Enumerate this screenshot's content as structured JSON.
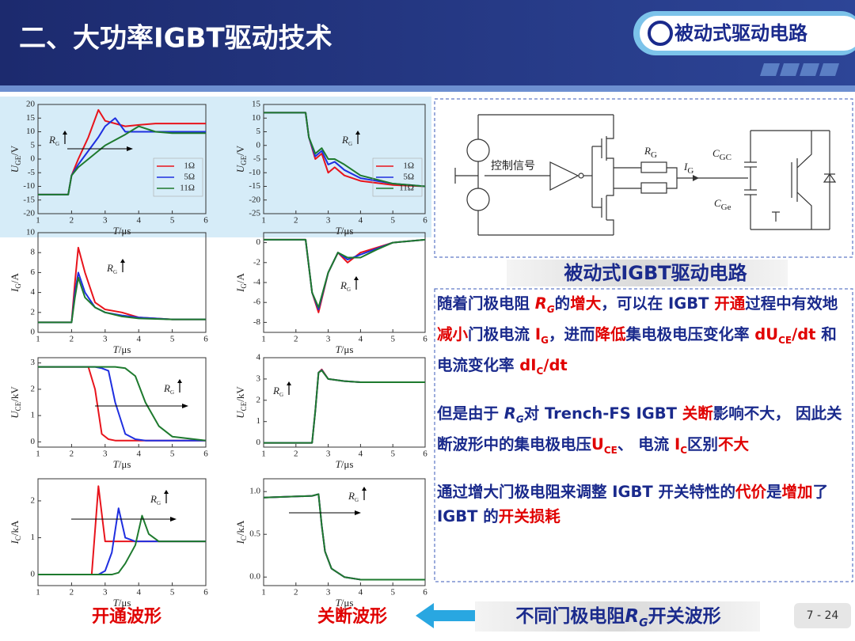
{
  "header": {
    "title": "二、大功率IGBT驱动技术",
    "badge": "被动式驱动电路"
  },
  "chart_data": [
    {
      "type": "line",
      "xlim": [
        1,
        6
      ],
      "ylim": [
        -20,
        20
      ],
      "xticks": [
        1,
        2,
        3,
        4,
        5,
        6
      ],
      "yticks": [
        -20,
        -15,
        -10,
        -5,
        0,
        5,
        10,
        15,
        20
      ],
      "xlabel": {
        "symbol": "T",
        "unit": "/μs"
      },
      "ylabel": {
        "symbol": "U",
        "subscript": "GE",
        "unit": "/V"
      },
      "annotation": {
        "symbol": "R",
        "subscript": "G"
      },
      "x": [
        1,
        1.9,
        2.0,
        2.2,
        2.5,
        2.8,
        3.0,
        3.3,
        3.6,
        4.0,
        4.5,
        5,
        6
      ],
      "series": [
        {
          "name": "1Ω",
          "color": "#e8141c",
          "values": [
            -13,
            -13,
            -6,
            0,
            8,
            18,
            14,
            13,
            12,
            12.5,
            13,
            13,
            13
          ]
        },
        {
          "name": "5Ω",
          "color": "#1f2fe0",
          "values": [
            -13,
            -13,
            -6,
            -2,
            3,
            8,
            12,
            15,
            10,
            10,
            10,
            10,
            10
          ]
        },
        {
          "name": "11Ω",
          "color": "#1e7a2e",
          "values": [
            -13,
            -13,
            -6,
            -3,
            0,
            3,
            5,
            7,
            9,
            12,
            10,
            9.5,
            9.5
          ]
        }
      ]
    },
    {
      "type": "line",
      "xlim": [
        1,
        6
      ],
      "ylim": [
        -25,
        15
      ],
      "xticks": [
        1,
        2,
        3,
        4,
        5,
        6
      ],
      "yticks": [
        -25,
        -20,
        -15,
        -10,
        -5,
        0,
        5,
        10,
        15
      ],
      "xlabel": {
        "symbol": "T",
        "unit": "/μs"
      },
      "ylabel": {
        "symbol": "U",
        "subscript": "GE",
        "unit": "/V"
      },
      "annotation": {
        "symbol": "R",
        "subscript": "G"
      },
      "x": [
        1,
        2.3,
        2.4,
        2.6,
        2.8,
        3.0,
        3.2,
        3.5,
        4,
        5,
        6
      ],
      "series": [
        {
          "name": "1Ω",
          "color": "#e8141c",
          "values": [
            12,
            12,
            3,
            -5,
            -3,
            -10,
            -8,
            -11,
            -13,
            -14.5,
            -15
          ]
        },
        {
          "name": "5Ω",
          "color": "#1f2fe0",
          "values": [
            12,
            12,
            3,
            -4,
            -2,
            -7,
            -6,
            -9,
            -12,
            -14,
            -15
          ]
        },
        {
          "name": "11Ω",
          "color": "#1e7a2e",
          "values": [
            12,
            12,
            3,
            -3,
            -1,
            -5,
            -5,
            -7,
            -11,
            -14,
            -15
          ]
        }
      ]
    },
    {
      "type": "line",
      "xlim": [
        1,
        6
      ],
      "ylim": [
        0,
        10
      ],
      "xticks": [
        1,
        2,
        3,
        4,
        5,
        6
      ],
      "yticks": [
        0,
        2,
        4,
        6,
        8,
        10
      ],
      "xlabel": {
        "symbol": "T",
        "unit": "/μs"
      },
      "ylabel": {
        "symbol": "I",
        "subscript": "G",
        "unit": "/A"
      },
      "annotation": {
        "symbol": "R",
        "subscript": "G"
      },
      "x": [
        1,
        2,
        2.1,
        2.2,
        2.4,
        2.7,
        3,
        3.5,
        4,
        5,
        6
      ],
      "series": [
        {
          "color": "#e8141c",
          "values": [
            1,
            1,
            5,
            8.5,
            6,
            3,
            2.3,
            2,
            1.5,
            1.3,
            1.3
          ]
        },
        {
          "color": "#1f2fe0",
          "values": [
            1,
            1,
            4,
            6,
            4,
            2.5,
            2,
            1.7,
            1.5,
            1.3,
            1.3
          ]
        },
        {
          "color": "#1e7a2e",
          "values": [
            1,
            1,
            3.5,
            5.5,
            3.5,
            2.5,
            2,
            1.6,
            1.4,
            1.3,
            1.3
          ]
        }
      ]
    },
    {
      "type": "line",
      "xlim": [
        1,
        6
      ],
      "ylim": [
        -9,
        1
      ],
      "xticks": [
        1,
        2,
        3,
        4,
        5,
        6
      ],
      "yticks": [
        -8,
        -6,
        -4,
        -2,
        0
      ],
      "xlabel": {
        "symbol": "T",
        "unit": "/μs"
      },
      "ylabel": {
        "symbol": "I",
        "subscript": "G",
        "unit": "/A"
      },
      "annotation": {
        "symbol": "R",
        "subscript": "G"
      },
      "x": [
        1,
        2.3,
        2.5,
        2.7,
        3,
        3.3,
        3.6,
        4,
        4.5,
        5,
        6
      ],
      "series": [
        {
          "color": "#e8141c",
          "values": [
            0.3,
            0.3,
            -5,
            -7,
            -3,
            -1,
            -2,
            -1,
            -0.5,
            0,
            0.3
          ]
        },
        {
          "color": "#1f2fe0",
          "values": [
            0.3,
            0.3,
            -5,
            -6.7,
            -3,
            -1,
            -1.7,
            -1.2,
            -0.6,
            0,
            0.3
          ]
        },
        {
          "color": "#1e7a2e",
          "values": [
            0.3,
            0.3,
            -5,
            -6.5,
            -3,
            -1,
            -1.5,
            -1.5,
            -0.7,
            0,
            0.3
          ]
        }
      ]
    },
    {
      "type": "line",
      "xlim": [
        1,
        6
      ],
      "ylim": [
        -0.2,
        3.2
      ],
      "xticks": [
        1,
        2,
        3,
        4,
        5,
        6
      ],
      "yticks": [
        0,
        1,
        2,
        3
      ],
      "xlabel": {
        "symbol": "T",
        "unit": "/μs"
      },
      "ylabel": {
        "symbol": "U",
        "subscript": "CE",
        "unit": "/kV"
      },
      "annotation": {
        "symbol": "R",
        "subscript": "G"
      },
      "x": [
        1,
        2.5,
        2.7,
        2.9,
        3.1,
        3.3,
        3.6,
        3.9,
        4.2,
        4.6,
        5,
        6
      ],
      "series": [
        {
          "color": "#e8141c",
          "values": [
            2.85,
            2.85,
            2,
            0.3,
            0.1,
            0.05,
            0.05,
            0.05,
            0.05,
            0.05,
            0.05,
            0.05
          ]
        },
        {
          "color": "#1f2fe0",
          "values": [
            2.85,
            2.85,
            2.85,
            2.8,
            2.7,
            1.5,
            0.3,
            0.1,
            0.05,
            0.05,
            0.05,
            0.05
          ]
        },
        {
          "color": "#1e7a2e",
          "values": [
            2.85,
            2.85,
            2.85,
            2.85,
            2.85,
            2.85,
            2.8,
            2.5,
            1.5,
            0.6,
            0.2,
            0.05
          ]
        }
      ]
    },
    {
      "type": "line",
      "xlim": [
        1,
        6
      ],
      "ylim": [
        -0.2,
        4
      ],
      "xticks": [
        1,
        2,
        3,
        4,
        5,
        6
      ],
      "yticks": [
        0,
        1,
        2,
        3,
        4
      ],
      "xlabel": {
        "symbol": "T",
        "unit": "/μs"
      },
      "ylabel": {
        "symbol": "U",
        "subscript": "CE",
        "unit": "/kV"
      },
      "annotation": {
        "symbol": "R",
        "subscript": "G"
      },
      "x": [
        1,
        2.5,
        2.6,
        2.7,
        2.8,
        3,
        3.5,
        4,
        5,
        6
      ],
      "series": [
        {
          "color": "#e8141c",
          "values": [
            0,
            0,
            1.5,
            3.3,
            3.45,
            3.0,
            2.9,
            2.85,
            2.85,
            2.85
          ]
        },
        {
          "color": "#1f2fe0",
          "values": [
            0,
            0,
            1.5,
            3.3,
            3.42,
            3.0,
            2.9,
            2.85,
            2.85,
            2.85
          ]
        },
        {
          "color": "#1e7a2e",
          "values": [
            0,
            0,
            1.5,
            3.3,
            3.4,
            3.0,
            2.9,
            2.85,
            2.85,
            2.85
          ]
        }
      ]
    },
    {
      "type": "line",
      "xlim": [
        1,
        6
      ],
      "ylim": [
        -0.3,
        2.6
      ],
      "xticks": [
        1,
        2,
        3,
        4,
        5,
        6
      ],
      "yticks": [
        0,
        1,
        2
      ],
      "xlabel": {
        "symbol": "T",
        "unit": "/μs"
      },
      "ylabel": {
        "symbol": "I",
        "subscript": "C",
        "unit": "/kA"
      },
      "annotation": {
        "symbol": "R",
        "subscript": "G"
      },
      "x": [
        1,
        2.6,
        2.8,
        3.0,
        3.2,
        3.4,
        3.6,
        3.9,
        4.1,
        4.3,
        4.6,
        6
      ],
      "series": [
        {
          "color": "#e8141c",
          "values": [
            0,
            0,
            2.4,
            0.9,
            0.9,
            0.9,
            0.9,
            0.9,
            0.9,
            0.9,
            0.9,
            0.9
          ]
        },
        {
          "color": "#1f2fe0",
          "values": [
            0,
            0,
            0,
            0.1,
            0.6,
            1.8,
            1.0,
            0.9,
            0.9,
            0.9,
            0.9,
            0.9
          ]
        },
        {
          "color": "#1e7a2e",
          "values": [
            0,
            0,
            0,
            0,
            0,
            0.05,
            0.3,
            0.8,
            1.6,
            1.1,
            0.9,
            0.9
          ]
        }
      ]
    },
    {
      "type": "line",
      "xlim": [
        1,
        6
      ],
      "ylim": [
        -0.1,
        1.15
      ],
      "xticks": [
        1,
        2,
        3,
        4,
        5,
        6
      ],
      "yticks": [
        {
          "value": 0,
          "label": "0.0"
        },
        {
          "value": 0.5,
          "label": "0.5"
        },
        {
          "value": 1,
          "label": "1.0"
        }
      ],
      "xlabel": {
        "symbol": "T",
        "unit": "/μs"
      },
      "ylabel": {
        "symbol": "I",
        "subscript": "C",
        "unit": "/kA"
      },
      "annotation": {
        "symbol": "R",
        "subscript": "G"
      },
      "x": [
        1,
        2.5,
        2.7,
        2.8,
        2.9,
        3.1,
        3.5,
        4,
        5,
        6
      ],
      "series": [
        {
          "color": "#e8141c",
          "values": [
            0.93,
            0.95,
            0.97,
            0.6,
            0.3,
            0.1,
            0,
            -0.03,
            -0.03,
            -0.03
          ]
        },
        {
          "color": "#1f2fe0",
          "values": [
            0.93,
            0.95,
            0.97,
            0.6,
            0.3,
            0.1,
            0,
            -0.03,
            -0.03,
            -0.03
          ]
        },
        {
          "color": "#1e7a2e",
          "values": [
            0.93,
            0.95,
            0.97,
            0.6,
            0.3,
            0.1,
            0,
            -0.03,
            -0.03,
            -0.03
          ]
        }
      ]
    }
  ],
  "captions": {
    "turn_on": "开通波形",
    "turn_off": "关断波形",
    "bottom": [
      {
        "text": "不同门极电阻"
      },
      {
        "text": "R",
        "italic": true
      },
      {
        "text": "G",
        "italic": true,
        "sub": true
      },
      {
        "text": "开关波形"
      }
    ]
  },
  "circuit": {
    "control_signal": "控制信号",
    "rg": {
      "symbol": "R",
      "subscript": "G"
    },
    "ig": {
      "symbol": "I",
      "subscript": "G"
    },
    "cgc": {
      "symbol": "C",
      "subscript": "GC"
    },
    "cge": {
      "symbol": "C",
      "subscript": "Ge"
    },
    "caption": "被动式IGBT驱动电路"
  },
  "paragraphs": [
    [
      {
        "text": "随着门极电阻 ",
        "color": "#1a2a8c"
      },
      {
        "text": "R",
        "color": "#e00000",
        "italic": true
      },
      {
        "text": "G",
        "color": "#e00000",
        "italic": true,
        "sub": true
      },
      {
        "text": "的",
        "color": "#1a2a8c"
      },
      {
        "text": "增大",
        "color": "#e00000"
      },
      {
        "text": "，可以在 IGBT ",
        "color": "#1a2a8c"
      },
      {
        "text": "开通",
        "color": "#e00000"
      },
      {
        "text": "过程中有效地",
        "color": "#1a2a8c"
      },
      {
        "text": "减小",
        "color": "#e00000"
      },
      {
        "text": "门极电流 ",
        "color": "#1a2a8c"
      },
      {
        "text": "I",
        "color": "#e00000"
      },
      {
        "text": "G",
        "color": "#e00000",
        "sub": true
      },
      {
        "text": "，进而",
        "color": "#1a2a8c"
      },
      {
        "text": "降低",
        "color": "#e00000"
      },
      {
        "text": "集电极电压变化率 ",
        "color": "#1a2a8c"
      },
      {
        "text": "dU",
        "color": "#e00000"
      },
      {
        "text": "CE",
        "color": "#e00000",
        "sub": true
      },
      {
        "text": "/dt",
        "color": "#e00000"
      },
      {
        "text": " 和电流变化率 ",
        "color": "#1a2a8c"
      },
      {
        "text": "dI",
        "color": "#e00000"
      },
      {
        "text": "C",
        "color": "#e00000",
        "sub": true
      },
      {
        "text": "/dt",
        "color": "#e00000"
      }
    ],
    [
      {
        "text": "但是由于 ",
        "color": "#1a2a8c"
      },
      {
        "text": "R",
        "color": "#1a2a8c",
        "italic": true
      },
      {
        "text": "G",
        "color": "#1a2a8c",
        "italic": true,
        "sub": true
      },
      {
        "text": "对 Trench-FS IGBT ",
        "color": "#1a2a8c"
      },
      {
        "text": "关断",
        "color": "#e00000"
      },
      {
        "text": "影响不大， 因此关断波形中的集电极电压",
        "color": "#1a2a8c"
      },
      {
        "text": "U",
        "color": "#e00000"
      },
      {
        "text": "CE",
        "color": "#e00000",
        "sub": true
      },
      {
        "text": "、 电流 ",
        "color": "#1a2a8c"
      },
      {
        "text": "I",
        "color": "#e00000"
      },
      {
        "text": "C",
        "color": "#e00000",
        "sub": true
      },
      {
        "text": "区别",
        "color": "#1a2a8c"
      },
      {
        "text": "不大",
        "color": "#e00000"
      }
    ],
    [
      {
        "text": "通过增大门极电阻来调整 IGBT 开关特性的",
        "color": "#1a2a8c"
      },
      {
        "text": "代价",
        "color": "#e00000"
      },
      {
        "text": "是",
        "color": "#1a2a8c"
      },
      {
        "text": "增加",
        "color": "#e00000"
      },
      {
        "text": "了 IGBT 的",
        "color": "#1a2a8c"
      },
      {
        "text": "开关损耗",
        "color": "#e00000"
      }
    ]
  ],
  "page_number": "7 - 24"
}
